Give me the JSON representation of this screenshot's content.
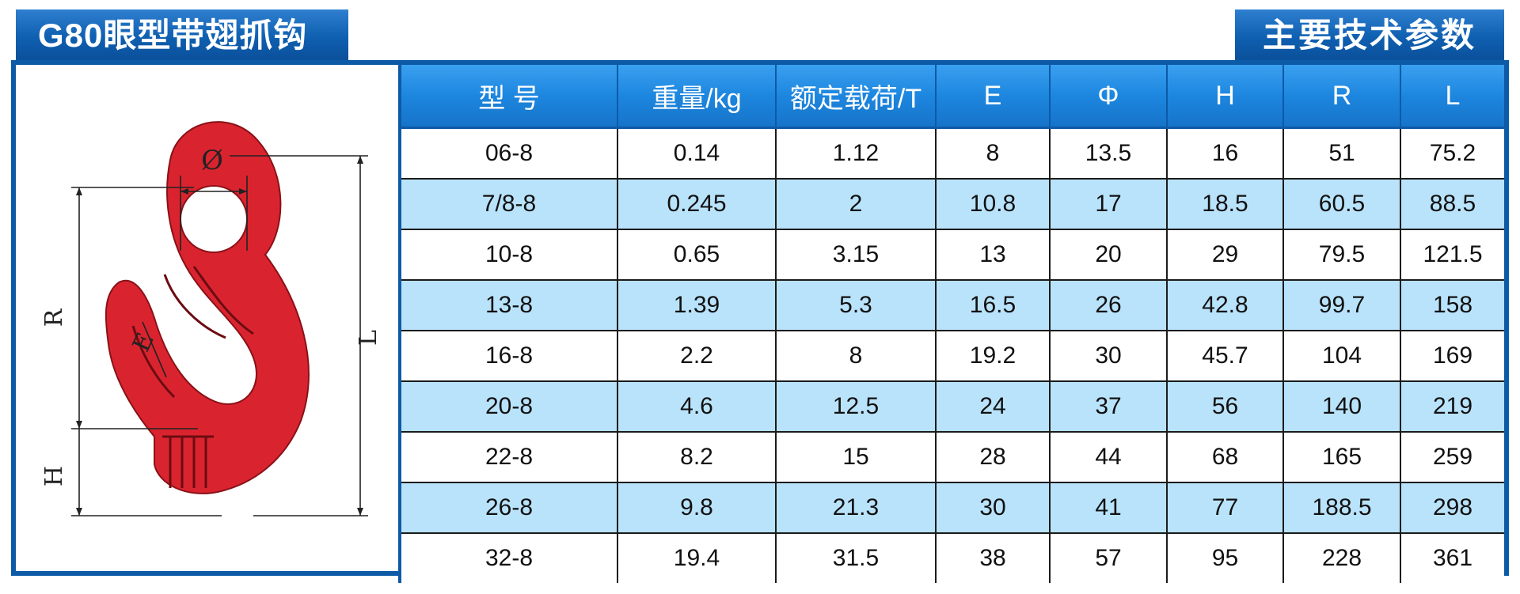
{
  "header": {
    "title": "G80眼型带翅抓钩",
    "params_label": "主要技术参数"
  },
  "drawing": {
    "labels": {
      "phi": "Ø",
      "e": "E",
      "r": "R",
      "h": "H",
      "l": "L"
    },
    "hook_color": "#d9242f"
  },
  "table": {
    "columns": [
      "型 号",
      "重量/kg",
      "额定载荷/T",
      "E",
      "Φ",
      "H",
      "R",
      "L"
    ],
    "rows": [
      [
        "06-8",
        "0.14",
        "1.12",
        "8",
        "13.5",
        "16",
        "51",
        "75.2"
      ],
      [
        "7/8-8",
        "0.245",
        "2",
        "10.8",
        "17",
        "18.5",
        "60.5",
        "88.5"
      ],
      [
        "10-8",
        "0.65",
        "3.15",
        "13",
        "20",
        "29",
        "79.5",
        "121.5"
      ],
      [
        "13-8",
        "1.39",
        "5.3",
        "16.5",
        "26",
        "42.8",
        "99.7",
        "158"
      ],
      [
        "16-8",
        "2.2",
        "8",
        "19.2",
        "30",
        "45.7",
        "104",
        "169"
      ],
      [
        "20-8",
        "4.6",
        "12.5",
        "24",
        "37",
        "56",
        "140",
        "219"
      ],
      [
        "22-8",
        "8.2",
        "15",
        "28",
        "44",
        "68",
        "165",
        "259"
      ],
      [
        "26-8",
        "9.8",
        "21.3",
        "30",
        "41",
        "77",
        "188.5",
        "298"
      ],
      [
        "32-8",
        "19.4",
        "31.5",
        "38",
        "57",
        "95",
        "228",
        "361"
      ]
    ]
  },
  "colors": {
    "frame_blue": "#0d5aa7",
    "header_blue": "#1d86df",
    "stripe_blue": "#b9e3fb"
  }
}
